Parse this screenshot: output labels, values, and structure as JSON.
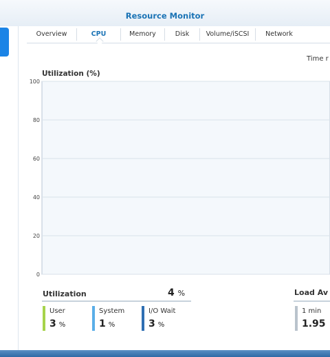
{
  "window": {
    "title": "Resource Monitor"
  },
  "tabs": [
    {
      "label": "Overview"
    },
    {
      "label": "CPU",
      "active": true
    },
    {
      "label": "Memory"
    },
    {
      "label": "Disk"
    },
    {
      "label": "Volume/iSCSI"
    },
    {
      "label": "Network"
    }
  ],
  "time_range_label": "Time r",
  "chart_data": {
    "type": "area",
    "title": "Utilization (%)",
    "ylim": [
      0,
      100
    ],
    "y_ticks": [
      "0",
      "20",
      "40",
      "60",
      "80",
      "100"
    ],
    "grid": true,
    "series": []
  },
  "utilization": {
    "label": "Utilization",
    "value": "4",
    "unit": "%",
    "metrics": [
      {
        "name": "User",
        "value": "3",
        "unit": "%",
        "color": "#a6d34b"
      },
      {
        "name": "System",
        "value": "1",
        "unit": "%",
        "color": "#5aaee8"
      },
      {
        "name": "I/O Wait",
        "value": "3",
        "unit": "%",
        "color": "#2f6fb3"
      }
    ]
  },
  "load_average": {
    "label": "Load Av",
    "metric": {
      "name": "1 min",
      "value": "1.95"
    }
  },
  "colors": {
    "accent": "#1a73b5",
    "chart_bg": "#f4f8fc",
    "grid": "#d9e2ea"
  }
}
